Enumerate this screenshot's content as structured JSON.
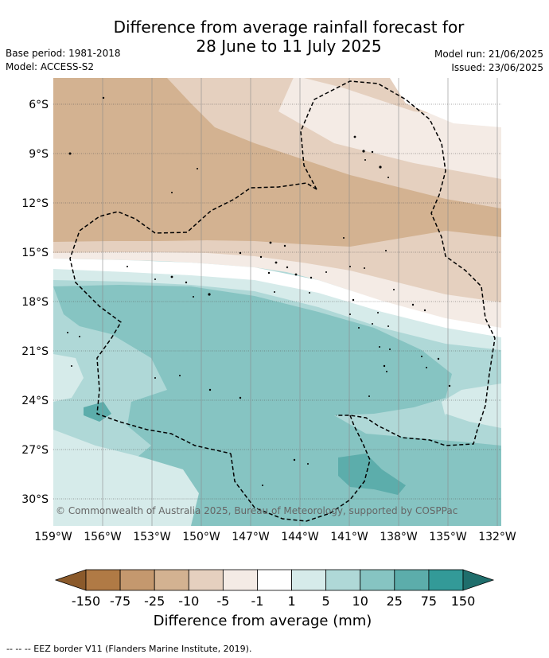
{
  "title": {
    "line1": "Difference from average rainfall forecast for",
    "line2": "28 June to 11 July 2025"
  },
  "meta": {
    "base_period": "Base period: 1981-2018",
    "model": "Model: ACCESS-S2",
    "model_run": "Model run: 21/06/2025",
    "issued": "Issued: 23/06/2025"
  },
  "map": {
    "lat_labels": [
      "6°S",
      "9°S",
      "12°S",
      "15°S",
      "18°S",
      "21°S",
      "24°S",
      "27°S",
      "30°S"
    ],
    "lon_labels": [
      "159°W",
      "156°W",
      "153°W",
      "150°W",
      "147°W",
      "144°W",
      "141°W",
      "138°W",
      "135°W",
      "132°W"
    ],
    "copyright": "© Commonwealth of Australia 2025, Bureau of Meteorology, supported by COSPPac"
  },
  "legend": {
    "tick_labels": [
      "-150",
      "-75",
      "-25",
      "-10",
      "-5",
      "-1",
      "1",
      "5",
      "10",
      "25",
      "75",
      "150"
    ],
    "colors": [
      "#8b5a2b",
      "#b07a45",
      "#c4986e",
      "#d3b291",
      "#e5d0bf",
      "#f4ebe5",
      "#ffffff",
      "#d6ebea",
      "#afd8d7",
      "#86c4c2",
      "#5cadab",
      "#339a98",
      "#1f6e6c"
    ],
    "caption": "Difference from average (mm)"
  },
  "footnote": "--  --  -- EEZ border V11 (Flanders Marine Institute, 2019)."
}
